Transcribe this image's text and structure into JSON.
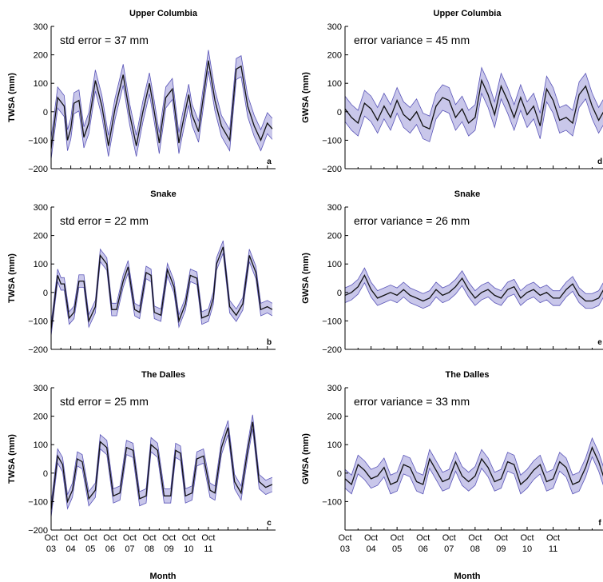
{
  "chart_data": [
    {
      "id": "a",
      "type": "line",
      "title": "Upper Columbia",
      "ylabel": "TWSA (mm)",
      "xlabel": "",
      "annotation": "std error  =  37 mm",
      "panel_letter": "a",
      "ylim": [
        -200,
        300
      ],
      "yticks": [
        -200,
        -100,
        0,
        100,
        200,
        300
      ],
      "xticks": [
        "Oct 03",
        "Oct 04",
        "Oct 05",
        "Oct 06",
        "Oct 07",
        "Oct 08",
        "Oct 09",
        "Oct 10",
        "Oct 11"
      ],
      "show_xtick_labels": false,
      "x": [
        0,
        4,
        8,
        10,
        12,
        14,
        17,
        20,
        23,
        27,
        31,
        35,
        39,
        44,
        48,
        52,
        56,
        60,
        63,
        66,
        70,
        74,
        78,
        80,
        84,
        86,
        90,
        96,
        100,
        104,
        109,
        113,
        116,
        120,
        124,
        128,
        132,
        135
      ],
      "y": [
        -130,
        50,
        20,
        -100,
        -60,
        30,
        40,
        -90,
        -40,
        110,
        20,
        -120,
        10,
        130,
        -10,
        -120,
        0,
        100,
        0,
        -110,
        50,
        80,
        -110,
        -50,
        60,
        -10,
        -70,
        180,
        40,
        -50,
        -100,
        150,
        160,
        20,
        -50,
        -100,
        -40,
        -60
      ],
      "band": 37,
      "band_color": "#c9c7ea",
      "band_edge": "#5a55b8",
      "line_color": "#111111"
    },
    {
      "id": "b",
      "type": "line",
      "title": "Snake",
      "ylabel": "TWSA (mm)",
      "xlabel": "",
      "annotation": "std error  =  22 mm",
      "panel_letter": "b",
      "ylim": [
        -200,
        300
      ],
      "yticks": [
        -200,
        -100,
        0,
        100,
        200,
        300
      ],
      "xticks": [
        "Oct 03",
        "Oct 04",
        "Oct 05",
        "Oct 06",
        "Oct 07",
        "Oct 08",
        "Oct 09",
        "Oct 10",
        "Oct 11"
      ],
      "show_xtick_labels": false,
      "x": [
        0,
        4,
        6,
        8,
        11,
        14,
        17,
        20,
        23,
        27,
        30,
        34,
        37,
        40,
        44,
        47,
        51,
        54,
        58,
        61,
        63,
        67,
        71,
        75,
        78,
        82,
        85,
        89,
        92,
        96,
        99,
        101,
        105,
        109,
        113,
        117,
        121,
        125,
        128,
        132,
        135
      ],
      "y": [
        -130,
        60,
        30,
        30,
        -90,
        -70,
        40,
        40,
        -100,
        -50,
        130,
        100,
        -60,
        -60,
        40,
        90,
        -60,
        -70,
        70,
        60,
        -70,
        -80,
        80,
        20,
        -100,
        -40,
        60,
        50,
        -90,
        -80,
        -20,
        100,
        160,
        -50,
        -80,
        -40,
        130,
        70,
        -60,
        -50,
        -60
      ],
      "band": 22,
      "band_color": "#c9c7ea",
      "band_edge": "#5a55b8",
      "line_color": "#111111"
    },
    {
      "id": "c",
      "type": "line",
      "title": "The Dalles",
      "ylabel": "TWSA (mm)",
      "xlabel": "",
      "annotation": "std error  =  25 mm",
      "panel_letter": "c",
      "ylim": [
        -200,
        300
      ],
      "yticks": [
        -200,
        -100,
        0,
        100,
        200,
        300
      ],
      "xticks": [
        "Oct 03",
        "Oct 04",
        "Oct 05",
        "Oct 06",
        "Oct 07",
        "Oct 08",
        "Oct 09",
        "Oct 10",
        "Oct 11"
      ],
      "show_xtick_labels": true,
      "x": [
        0,
        4,
        7,
        10,
        13,
        16,
        19,
        23,
        27,
        30,
        34,
        38,
        42,
        46,
        50,
        54,
        58,
        61,
        65,
        69,
        73,
        76,
        79,
        82,
        86,
        89,
        93,
        97,
        100,
        104,
        108,
        112,
        116,
        120,
        123,
        127,
        131,
        135
      ],
      "y": [
        -130,
        60,
        30,
        -100,
        -60,
        50,
        40,
        -90,
        -60,
        110,
        90,
        -80,
        -70,
        90,
        80,
        -90,
        -80,
        100,
        80,
        -80,
        -80,
        80,
        70,
        -80,
        -70,
        50,
        60,
        -60,
        -70,
        90,
        160,
        -30,
        -70,
        80,
        180,
        -30,
        -50,
        -40
      ],
      "band": 25,
      "band_color": "#c9c7ea",
      "band_edge": "#5a55b8",
      "line_color": "#111111"
    },
    {
      "id": "d",
      "type": "line",
      "title": "Upper Columbia",
      "ylabel": "GWSA (mm)",
      "xlabel": "",
      "annotation": "error variance  =  45 mm",
      "panel_letter": "d",
      "ylim": [
        -200,
        300
      ],
      "yticks": [
        -200,
        -100,
        0,
        100,
        200,
        300
      ],
      "xticks": [
        "Oct 03",
        "Oct 04",
        "Oct 05",
        "Oct 06",
        "Oct 07",
        "Oct 08",
        "Oct 09",
        "Oct 10",
        "Oct 11"
      ],
      "show_xtick_labels": false,
      "x": [
        0,
        3,
        6,
        9,
        12,
        15,
        18,
        21,
        24,
        27,
        30,
        33,
        36,
        39,
        42,
        45,
        48,
        51,
        54,
        57,
        60,
        63,
        66,
        69,
        72,
        75,
        78,
        81,
        84,
        87,
        90,
        93,
        96,
        99,
        102,
        105,
        108,
        111,
        114,
        117,
        120,
        123,
        126,
        129,
        132,
        135
      ],
      "y": [
        10,
        -20,
        -40,
        30,
        10,
        -30,
        20,
        -20,
        40,
        -10,
        -30,
        0,
        -50,
        -60,
        20,
        50,
        40,
        -20,
        10,
        -40,
        -20,
        110,
        60,
        -10,
        90,
        40,
        -20,
        50,
        -10,
        20,
        -50,
        80,
        40,
        -30,
        -20,
        -40,
        60,
        90,
        20,
        -30,
        10,
        110,
        100,
        140,
        180,
        120
      ],
      "band": 45,
      "band_color": "#c9c7ea",
      "band_edge": "#5a55b8",
      "line_color": "#111111"
    },
    {
      "id": "e",
      "type": "line",
      "title": "Snake",
      "ylabel": "GWSA (mm)",
      "xlabel": "",
      "annotation": "error variance =  26 mm",
      "panel_letter": "e",
      "ylim": [
        -200,
        300
      ],
      "yticks": [
        -200,
        -100,
        0,
        100,
        200,
        300
      ],
      "xticks": [
        "Oct 03",
        "Oct 04",
        "Oct 05",
        "Oct 06",
        "Oct 07",
        "Oct 08",
        "Oct 09",
        "Oct 10",
        "Oct 11"
      ],
      "show_xtick_labels": false,
      "x": [
        0,
        3,
        6,
        9,
        12,
        15,
        18,
        21,
        24,
        27,
        30,
        33,
        36,
        39,
        42,
        45,
        48,
        51,
        54,
        57,
        60,
        63,
        66,
        69,
        72,
        75,
        78,
        81,
        84,
        87,
        90,
        93,
        96,
        99,
        102,
        105,
        108,
        111,
        114,
        117,
        120,
        123,
        126,
        129,
        132,
        135
      ],
      "y": [
        -10,
        0,
        20,
        60,
        10,
        -20,
        -10,
        0,
        -10,
        10,
        -10,
        -20,
        -30,
        -20,
        10,
        -10,
        0,
        20,
        50,
        10,
        -20,
        0,
        10,
        -10,
        -20,
        10,
        20,
        -20,
        0,
        10,
        -10,
        0,
        -20,
        -20,
        10,
        30,
        -10,
        -30,
        -30,
        -20,
        20,
        50,
        10,
        20,
        80,
        40
      ],
      "band": 26,
      "band_color": "#c9c7ea",
      "band_edge": "#5a55b8",
      "line_color": "#111111"
    },
    {
      "id": "f",
      "type": "line",
      "title": "The Dalles",
      "ylabel": "GWSA (mm)",
      "xlabel": "",
      "annotation": "error variance  =  33 mm",
      "panel_letter": "f",
      "ylim": [
        -200,
        300
      ],
      "yticks": [
        -100,
        0,
        100,
        200,
        300
      ],
      "xticks": [
        "Oct 03",
        "Oct 04",
        "Oct 05",
        "Oct 06",
        "Oct 07",
        "Oct 08",
        "Oct 09",
        "Oct 10",
        "Oct 11"
      ],
      "show_xtick_labels": true,
      "x": [
        0,
        3,
        6,
        9,
        12,
        15,
        18,
        21,
        24,
        27,
        30,
        33,
        36,
        39,
        42,
        45,
        48,
        51,
        54,
        57,
        60,
        63,
        66,
        69,
        72,
        75,
        78,
        81,
        84,
        87,
        90,
        93,
        96,
        99,
        102,
        105,
        108,
        111,
        114,
        117,
        120,
        123,
        126,
        129,
        132,
        135
      ],
      "y": [
        -20,
        -40,
        30,
        10,
        -20,
        -10,
        20,
        -40,
        -30,
        30,
        20,
        -30,
        -40,
        50,
        10,
        -30,
        -20,
        40,
        -10,
        -30,
        -10,
        50,
        20,
        -30,
        -20,
        40,
        30,
        -40,
        -20,
        10,
        30,
        -30,
        -20,
        40,
        20,
        -40,
        -30,
        20,
        90,
        40,
        -30,
        -20,
        80,
        100,
        60,
        20
      ],
      "band": 33,
      "band_color": "#c9c7ea",
      "band_edge": "#5a55b8",
      "line_color": "#111111"
    }
  ],
  "layout": {
    "xtick_top": [
      "Oct",
      "Oct",
      "Oct",
      "Oct",
      "Oct",
      "Oct",
      "Oct",
      "Oct",
      "Oct"
    ],
    "xtick_bottom": [
      "03",
      "04",
      "05",
      "06",
      "07",
      "08",
      "09",
      "10",
      "11"
    ],
    "left_xlabel": "Month",
    "right_xlabel": "Month"
  }
}
